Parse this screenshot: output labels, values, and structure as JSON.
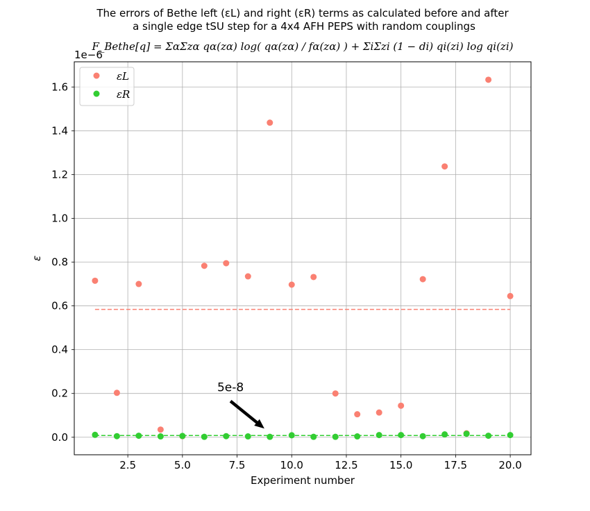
{
  "chart_data": {
    "type": "scatter",
    "title_line1": "The errors of Bethe left (εL) and right (εR) terms as calculated before and after",
    "title_line2": "a single edge tSU step for a 4x4 AFH PEPS with random couplings",
    "formula": "F_Bethe[q] = ΣαΣzα qα(zα) log( qα(zα) / fα(zα) ) + ΣiΣzi (1 − di) qi(zi) log qi(zi)",
    "xlabel": "Experiment number",
    "ylabel": "ε",
    "y_offset_label": "1e−6",
    "xlim": [
      0.05,
      20.95
    ],
    "ylim": [
      -0.08,
      1.715
    ],
    "x_ticks": [
      2.5,
      5.0,
      7.5,
      10.0,
      12.5,
      15.0,
      17.5,
      20.0
    ],
    "x_tick_labels": [
      "2.5",
      "5.0",
      "7.5",
      "10.0",
      "12.5",
      "15.0",
      "17.5",
      "20.0"
    ],
    "y_ticks": [
      0.0,
      0.2,
      0.4,
      0.6,
      0.8,
      1.0,
      1.2,
      1.4,
      1.6
    ],
    "y_tick_labels": [
      "0.0",
      "0.2",
      "0.4",
      "0.6",
      "0.8",
      "1.0",
      "1.2",
      "1.4",
      "1.6"
    ],
    "grid": true,
    "legend_position": "top-left",
    "x": [
      1,
      2,
      3,
      4,
      5,
      6,
      7,
      8,
      9,
      10,
      11,
      12,
      13,
      14,
      15,
      16,
      17,
      18,
      19,
      20
    ],
    "series": [
      {
        "name": "εL",
        "color": "#fa8072",
        "values": [
          0.715,
          0.203,
          0.7,
          0.035,
          0.005,
          0.783,
          0.795,
          0.735,
          1.437,
          0.697,
          0.732,
          0.2,
          0.105,
          0.113,
          0.144,
          0.722,
          1.237,
          0.018,
          1.633,
          0.645
        ],
        "mean": 0.584
      },
      {
        "name": "εR",
        "color": "#32cd32",
        "values": [
          0.011,
          0.005,
          0.007,
          0.004,
          0.006,
          0.002,
          0.005,
          0.004,
          0.002,
          0.009,
          0.002,
          0.002,
          0.004,
          0.01,
          0.01,
          0.005,
          0.013,
          0.016,
          0.007,
          0.01
        ],
        "mean": 0.008
      }
    ],
    "annotation": {
      "text": "5e-8",
      "text_x": 7.2,
      "text_y": 0.21,
      "arrow_start": [
        7.2,
        0.165
      ],
      "arrow_end": [
        8.75,
        0.04
      ]
    }
  }
}
